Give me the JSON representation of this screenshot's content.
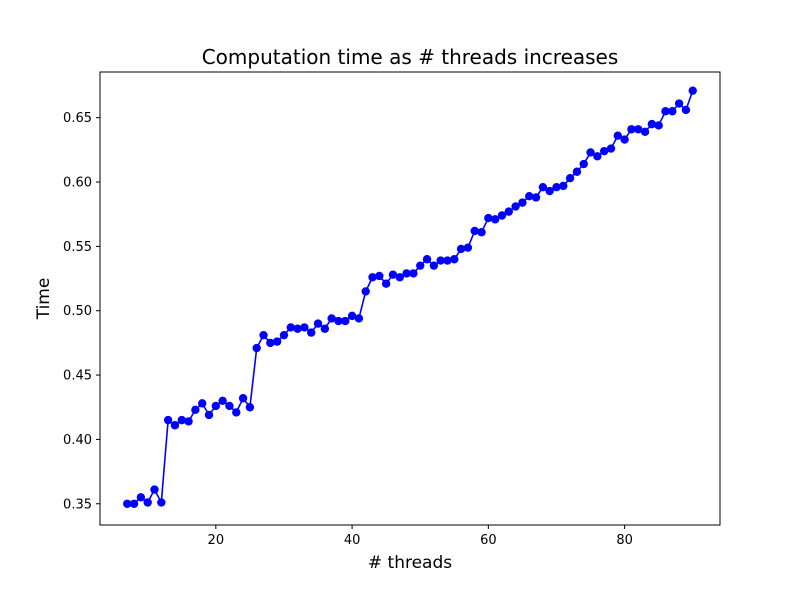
{
  "chart_data": {
    "type": "line",
    "title": "Computation time as # threads increases",
    "xlabel": "# threads",
    "ylabel": "Time",
    "xlim": [
      3,
      94
    ],
    "ylim": [
      0.3335,
      0.6855
    ],
    "xticks": [
      20,
      40,
      60,
      80
    ],
    "yticks": [
      0.35,
      0.4,
      0.45,
      0.5,
      0.55,
      0.6,
      0.65
    ],
    "grid": false,
    "marker": "circle",
    "series": [
      {
        "color": "#0000ff",
        "x": [
          7,
          8,
          9,
          10,
          11,
          12,
          13,
          14,
          15,
          16,
          17,
          18,
          19,
          20,
          21,
          22,
          23,
          24,
          25,
          26,
          27,
          28,
          29,
          30,
          31,
          32,
          33,
          34,
          35,
          36,
          37,
          38,
          39,
          40,
          41,
          42,
          43,
          44,
          45,
          46,
          47,
          48,
          49,
          50,
          51,
          52,
          53,
          54,
          55,
          56,
          57,
          58,
          59,
          60,
          61,
          62,
          63,
          64,
          65,
          66,
          67,
          68,
          69,
          70,
          71,
          72,
          73,
          74,
          75,
          76,
          77,
          78,
          79,
          80,
          81,
          82,
          83,
          84,
          85,
          86,
          87,
          88,
          89,
          90
        ],
        "y": [
          0.35,
          0.35,
          0.355,
          0.351,
          0.361,
          0.351,
          0.415,
          0.411,
          0.415,
          0.414,
          0.423,
          0.428,
          0.419,
          0.426,
          0.43,
          0.426,
          0.421,
          0.432,
          0.425,
          0.471,
          0.481,
          0.475,
          0.476,
          0.481,
          0.487,
          0.486,
          0.487,
          0.483,
          0.49,
          0.486,
          0.494,
          0.492,
          0.492,
          0.496,
          0.494,
          0.515,
          0.526,
          0.527,
          0.521,
          0.528,
          0.526,
          0.529,
          0.529,
          0.535,
          0.54,
          0.535,
          0.539,
          0.539,
          0.54,
          0.548,
          0.549,
          0.562,
          0.561,
          0.572,
          0.571,
          0.574,
          0.577,
          0.581,
          0.584,
          0.589,
          0.588,
          0.596,
          0.593,
          0.596,
          0.597,
          0.603,
          0.608,
          0.614,
          0.623,
          0.62,
          0.624,
          0.626,
          0.636,
          0.633,
          0.641,
          0.641,
          0.639,
          0.645,
          0.644,
          0.655,
          0.655,
          0.661,
          0.656,
          0.671
        ]
      }
    ]
  }
}
